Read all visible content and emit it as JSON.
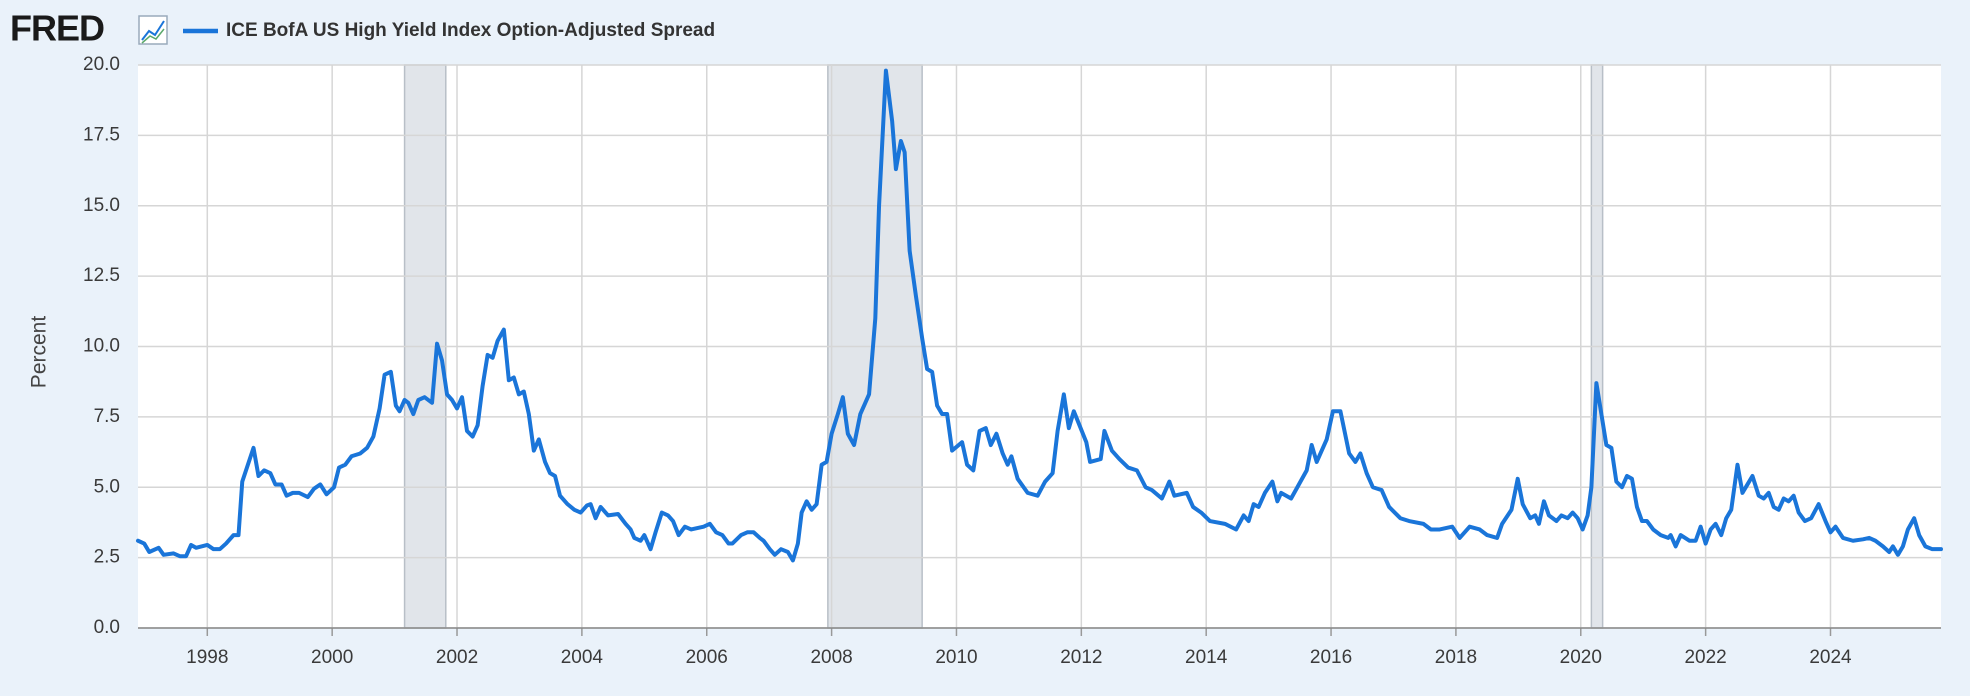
{
  "brand": "FRED",
  "chart_data": {
    "type": "line",
    "ylabel": "Percent",
    "xlim": [
      1996.89,
      2025.77
    ],
    "xticks": [
      1998,
      2000,
      2002,
      2004,
      2006,
      2008,
      2010,
      2012,
      2014,
      2016,
      2018,
      2020,
      2022,
      2024
    ],
    "ylim": [
      0,
      20
    ],
    "yticks": [
      {
        "value": 0,
        "label": "0.0"
      },
      {
        "value": 2.5,
        "label": "2.5"
      },
      {
        "value": 5,
        "label": "5.0"
      },
      {
        "value": 7.5,
        "label": "7.5"
      },
      {
        "value": 10,
        "label": "10.0"
      },
      {
        "value": 12.5,
        "label": "12.5"
      },
      {
        "value": 15,
        "label": "15.0"
      },
      {
        "value": 17.5,
        "label": "17.5"
      },
      {
        "value": 20,
        "label": "20.0"
      }
    ],
    "grid": true,
    "recessions": [
      [
        2001.16,
        2001.82
      ],
      [
        2007.94,
        2009.45
      ],
      [
        2020.17,
        2020.35
      ]
    ],
    "recession_color": "#e1e5ea",
    "x": [
      1996.89,
      1996.99,
      1997.07,
      1997.22,
      1997.3,
      1997.46,
      1997.56,
      1997.66,
      1997.74,
      1997.82,
      1998.0,
      1998.1,
      1998.2,
      1998.3,
      1998.42,
      1998.5,
      1998.56,
      1998.74,
      1998.82,
      1998.91,
      1999.01,
      1999.09,
      1999.19,
      1999.27,
      1999.37,
      1999.47,
      1999.61,
      1999.71,
      1999.81,
      1999.91,
      2000.03,
      2000.11,
      2000.21,
      2000.31,
      2000.45,
      2000.56,
      2000.66,
      2000.76,
      2000.84,
      2000.94,
      2001.02,
      2001.08,
      2001.16,
      2001.22,
      2001.3,
      2001.38,
      2001.48,
      2001.6,
      2001.68,
      2001.76,
      2001.84,
      2001.92,
      2002.0,
      2002.08,
      2002.16,
      2002.25,
      2002.33,
      2002.41,
      2002.49,
      2002.57,
      2002.65,
      2002.75,
      2002.83,
      2002.91,
      2002.99,
      2003.07,
      2003.15,
      2003.23,
      2003.31,
      2003.41,
      2003.49,
      2003.57,
      2003.65,
      2003.77,
      2003.88,
      2003.98,
      2004.08,
      2004.14,
      2004.22,
      2004.3,
      2004.42,
      2004.58,
      2004.7,
      2004.78,
      2004.84,
      2004.94,
      2005.0,
      2005.1,
      2005.18,
      2005.28,
      2005.38,
      2005.46,
      2005.55,
      2005.65,
      2005.75,
      2005.95,
      2006.05,
      2006.15,
      2006.25,
      2006.35,
      2006.41,
      2006.55,
      2006.65,
      2006.75,
      2006.85,
      2006.91,
      2007.01,
      2007.09,
      2007.19,
      2007.3,
      2007.38,
      2007.46,
      2007.52,
      2007.6,
      2007.68,
      2007.76,
      2007.84,
      2007.92,
      2008.0,
      2008.1,
      2008.18,
      2008.26,
      2008.36,
      2008.46,
      2008.54,
      2008.6,
      2008.7,
      2008.76,
      2008.87,
      2008.97,
      2009.03,
      2009.11,
      2009.17,
      2009.25,
      2009.35,
      2009.45,
      2009.53,
      2009.61,
      2009.69,
      2009.77,
      2009.85,
      2009.93,
      2010.09,
      2010.17,
      2010.27,
      2010.37,
      2010.47,
      2010.55,
      2010.64,
      2010.74,
      2010.82,
      2010.88,
      2010.98,
      2011.14,
      2011.3,
      2011.42,
      2011.54,
      2011.62,
      2011.72,
      2011.8,
      2011.88,
      2012.08,
      2012.14,
      2012.31,
      2012.37,
      2012.49,
      2012.61,
      2012.75,
      2012.89,
      2013.03,
      2013.13,
      2013.29,
      2013.41,
      2013.49,
      2013.69,
      2013.79,
      2013.92,
      2014.06,
      2014.3,
      2014.48,
      2014.6,
      2014.68,
      2014.76,
      2014.84,
      2014.94,
      2015.06,
      2015.14,
      2015.2,
      2015.36,
      2015.46,
      2015.61,
      2015.69,
      2015.77,
      2015.93,
      2016.03,
      2016.15,
      2016.29,
      2016.39,
      2016.47,
      2016.57,
      2016.67,
      2016.81,
      2016.93,
      2017.11,
      2017.25,
      2017.48,
      2017.6,
      2017.74,
      2017.94,
      2018.06,
      2018.22,
      2018.38,
      2018.5,
      2018.66,
      2018.74,
      2018.89,
      2018.99,
      2019.07,
      2019.19,
      2019.27,
      2019.33,
      2019.41,
      2019.49,
      2019.61,
      2019.69,
      2019.79,
      2019.87,
      2019.95,
      2020.03,
      2020.11,
      2020.17,
      2020.25,
      2020.33,
      2020.41,
      2020.49,
      2020.57,
      2020.66,
      2020.74,
      2020.82,
      2020.9,
      2020.98,
      2021.06,
      2021.16,
      2021.28,
      2021.4,
      2021.44,
      2021.52,
      2021.6,
      2021.74,
      2021.84,
      2021.92,
      2022.0,
      2022.08,
      2022.16,
      2022.25,
      2022.33,
      2022.41,
      2022.51,
      2022.59,
      2022.67,
      2022.75,
      2022.85,
      2022.93,
      2023.01,
      2023.09,
      2023.17,
      2023.25,
      2023.33,
      2023.41,
      2023.49,
      2023.59,
      2023.69,
      2023.81,
      2023.92,
      2024.0,
      2024.08,
      2024.2,
      2024.36,
      2024.52,
      2024.62,
      2024.72,
      2024.84,
      2024.94,
      2025.0,
      2025.08,
      2025.16,
      2025.24,
      2025.34,
      2025.42,
      2025.52,
      2025.63,
      2025.77
    ],
    "series": [
      {
        "name": "ICE BofA US High Yield Index Option-Adjusted Spread",
        "color": "#1a75d9",
        "values": [
          3.1,
          3.0,
          2.7,
          2.85,
          2.6,
          2.65,
          2.55,
          2.55,
          2.95,
          2.85,
          2.95,
          2.8,
          2.8,
          3.0,
          3.3,
          3.3,
          5.2,
          6.4,
          5.4,
          5.6,
          5.5,
          5.1,
          5.1,
          4.7,
          4.8,
          4.8,
          4.65,
          4.95,
          5.1,
          4.75,
          5.0,
          5.7,
          5.8,
          6.1,
          6.2,
          6.4,
          6.8,
          7.8,
          9.0,
          9.1,
          7.9,
          7.7,
          8.1,
          8.0,
          7.6,
          8.1,
          8.2,
          8.0,
          10.1,
          9.5,
          8.3,
          8.1,
          7.8,
          8.2,
          7.0,
          6.8,
          7.2,
          8.6,
          9.7,
          9.6,
          10.2,
          10.6,
          8.8,
          8.9,
          8.3,
          8.4,
          7.6,
          6.3,
          6.7,
          5.9,
          5.5,
          5.4,
          4.7,
          4.4,
          4.2,
          4.1,
          4.35,
          4.4,
          3.9,
          4.3,
          4.0,
          4.05,
          3.7,
          3.5,
          3.2,
          3.1,
          3.3,
          2.8,
          3.4,
          4.1,
          4.0,
          3.8,
          3.3,
          3.6,
          3.5,
          3.6,
          3.7,
          3.4,
          3.3,
          3.0,
          3.0,
          3.3,
          3.4,
          3.4,
          3.2,
          3.1,
          2.8,
          2.6,
          2.8,
          2.7,
          2.4,
          3.0,
          4.1,
          4.5,
          4.2,
          4.4,
          5.8,
          5.9,
          6.9,
          7.6,
          8.2,
          6.9,
          6.5,
          7.6,
          8.0,
          8.3,
          11.0,
          15.0,
          19.8,
          18.0,
          16.3,
          17.3,
          16.9,
          13.4,
          11.8,
          10.3,
          9.2,
          9.1,
          7.9,
          7.6,
          7.6,
          6.3,
          6.6,
          5.8,
          5.6,
          7.0,
          7.1,
          6.5,
          6.9,
          6.2,
          5.8,
          6.1,
          5.3,
          4.8,
          4.7,
          5.2,
          5.5,
          7.0,
          8.3,
          7.1,
          7.7,
          6.6,
          5.9,
          6.0,
          7.0,
          6.3,
          6.0,
          5.7,
          5.6,
          5.0,
          4.9,
          4.6,
          5.2,
          4.7,
          4.8,
          4.3,
          4.1,
          3.8,
          3.7,
          3.5,
          4.0,
          3.8,
          4.4,
          4.3,
          4.8,
          5.2,
          4.5,
          4.8,
          4.6,
          5.0,
          5.6,
          6.5,
          5.9,
          6.7,
          7.7,
          7.7,
          6.2,
          5.9,
          6.2,
          5.5,
          5.0,
          4.9,
          4.3,
          3.9,
          3.8,
          3.7,
          3.5,
          3.5,
          3.6,
          3.2,
          3.6,
          3.5,
          3.3,
          3.2,
          3.7,
          4.2,
          5.3,
          4.4,
          3.9,
          4.0,
          3.7,
          4.5,
          4.0,
          3.8,
          4.0,
          3.9,
          4.1,
          3.9,
          3.5,
          4.0,
          5.0,
          8.7,
          7.6,
          6.5,
          6.4,
          5.2,
          5.0,
          5.4,
          5.3,
          4.3,
          3.8,
          3.8,
          3.5,
          3.3,
          3.2,
          3.3,
          2.9,
          3.3,
          3.1,
          3.1,
          3.6,
          3.0,
          3.5,
          3.7,
          3.3,
          3.9,
          4.2,
          5.8,
          4.8,
          5.1,
          5.4,
          4.7,
          4.6,
          4.8,
          4.3,
          4.2,
          4.6,
          4.5,
          4.7,
          4.1,
          3.8,
          3.9,
          4.4,
          3.8,
          3.4,
          3.6,
          3.2,
          3.1,
          3.15,
          3.2,
          3.1,
          2.9,
          2.7,
          2.9,
          2.6,
          2.9,
          3.5,
          3.9,
          3.3,
          2.9,
          2.8,
          2.8
        ]
      }
    ]
  }
}
